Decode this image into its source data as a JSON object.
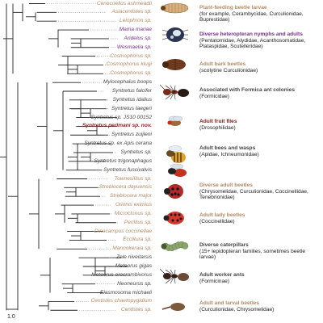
{
  "colors": {
    "tan": "#b58a63",
    "purple": "#7b2f8e",
    "grey": "#444444",
    "highlight": "#8b1a1a",
    "tree": "#222222",
    "dots": "#888888"
  },
  "taxa": [
    {
      "name": "Cenocoelius ashmeadii",
      "color": "tan"
    },
    {
      "name": "Asiacentistes sp.",
      "color": "tan"
    },
    {
      "name": "Leiophron sp.",
      "color": "tan"
    },
    {
      "name": "Mama mariae",
      "color": "purple"
    },
    {
      "name": "Aridelus sp.",
      "color": "purple"
    },
    {
      "name": "Wesmaelia sp.",
      "color": "purple"
    },
    {
      "name": "Cosmophorus sp.",
      "color": "tan"
    },
    {
      "name": "Cosmophorus klugi",
      "color": "tan"
    },
    {
      "name": "Cosmophorus sp.",
      "color": "tan"
    },
    {
      "name": "Myiocephalus boops",
      "color": "grey"
    },
    {
      "name": "Syntretus falcifer",
      "color": "grey"
    },
    {
      "name": "Syntretus idalius",
      "color": "grey"
    },
    {
      "name": "Syntretus taegeri",
      "color": "grey"
    },
    {
      "name": "Syntretus sp. JS10 00152",
      "color": "grey"
    },
    {
      "name": "Syntretus perlmani sp. nov.",
      "color": "highlight",
      "bold": true
    },
    {
      "name": "Syntretus zuijleni",
      "color": "grey"
    },
    {
      "name": "Syntretus sp. ex Apis cerana",
      "color": "grey"
    },
    {
      "name": "Syntretus sp.",
      "color": "grey"
    },
    {
      "name": "Syntretus trigonaphagus",
      "color": "grey"
    },
    {
      "name": "Syntretus fuscivalvis",
      "color": "grey"
    },
    {
      "name": "Townesilitus sp.",
      "color": "tan"
    },
    {
      "name": "Streblocera dayuensis",
      "color": "tan"
    },
    {
      "name": "Streblocera major",
      "color": "tan"
    },
    {
      "name": "Orionis eximius",
      "color": "tan"
    },
    {
      "name": "Microctonus sp.",
      "color": "tan"
    },
    {
      "name": "Perilitus sp.",
      "color": "tan"
    },
    {
      "name": "Dinocampus coccinellae",
      "color": "tan"
    },
    {
      "name": "Ecclitura sp.",
      "color": "tan"
    },
    {
      "name": "Mannokeraia sp.",
      "color": "tan"
    },
    {
      "name": "Zele niveitarsis",
      "color": "grey"
    },
    {
      "name": "Meteorus gigas",
      "color": "grey"
    },
    {
      "name": "Meteorus orocrambivorus",
      "color": "grey"
    },
    {
      "name": "Neoneurus sp.",
      "color": "grey"
    },
    {
      "name": "Elasmosoma michaeli",
      "color": "grey"
    },
    {
      "name": "Centistes chaetopygidium",
      "color": "tan"
    },
    {
      "name": "Centistes sp.",
      "color": "tan"
    }
  ],
  "groups": [
    {
      "title": "Plant-feeding beetle larvae",
      "desc": "(for example, Cerambycidae, Curculionidae, Buprestidae)",
      "color": "tan",
      "icon": "larva-icon"
    },
    {
      "title": "Diverse heteropteran nymphs and adults",
      "desc": "(Pentatomidae, Alydidae, Acanthosomatidae, Plataspidae, Scutelleridae)",
      "color": "purple",
      "icon": "bug-icon"
    },
    {
      "title": "Adult bark beetles",
      "desc": "(scolytine Curculionidae)",
      "color": "tan",
      "icon": "bark-beetle-icon"
    },
    {
      "title": "Associated with Formica ant colonies",
      "desc": "(Formicidae)",
      "color": "grey",
      "icon": "ant-icon"
    },
    {
      "title": "Adult fruit flies",
      "desc": "(Drosophilidae)",
      "color": "highlight",
      "icon": "fly-icon"
    },
    {
      "title": "Adult bees and wasps",
      "desc": "(Apidae, Ichneumonidae)",
      "color": "grey",
      "icon": "bee-icon"
    },
    {
      "title": "Diverse adult beetles",
      "desc": "(Chrysomelidae, Curculionidae, Coccinellidae, Tenebrionidae)",
      "color": "tan",
      "icon": "beetle-icon"
    },
    {
      "title": "Adult lady beetles",
      "desc": "(Coccinellidae)",
      "color": "tan",
      "icon": "ladybug-icon"
    },
    {
      "title": "Diverse caterpillars",
      "desc": "(15+ lepidopteran families, sometimes beetle larvae)",
      "color": "grey",
      "icon": "caterpillar-icon"
    },
    {
      "title": "Adult worker ants",
      "desc": "(Formicinae)",
      "color": "grey",
      "icon": "worker-ant-icon"
    },
    {
      "title": "Adult and larval beetles",
      "desc": "(Curculionidae, Chrysomelidae)",
      "color": "tan",
      "icon": "weevil-icon"
    }
  ],
  "scale": "1.0"
}
